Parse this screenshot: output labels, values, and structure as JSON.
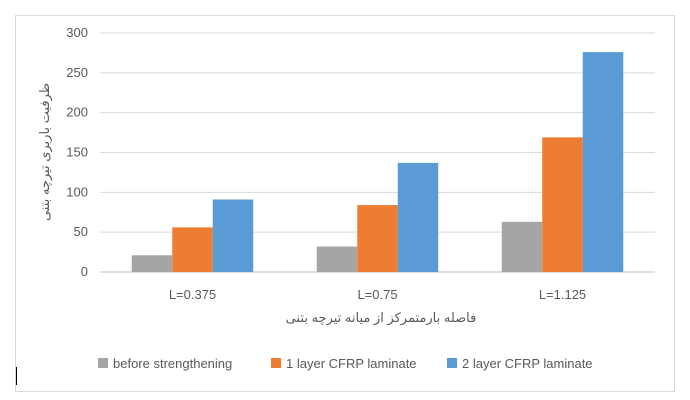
{
  "chart_data": {
    "type": "bar",
    "title": "",
    "xlabel": "فاصله بارمتمرکز از میانه تیرچه بتنی",
    "ylabel": "ظرفیت باربری تیرچه بتنی",
    "categories": [
      "L=0.375",
      "L=0.75",
      "L=1.125"
    ],
    "series": [
      {
        "name": "before strengthening",
        "color": "#a5a5a5",
        "values": [
          21,
          32,
          63
        ]
      },
      {
        "name": "1 layer CFRP laminate",
        "color": "#ed7d31",
        "values": [
          56,
          84,
          169
        ]
      },
      {
        "name": "2 layer CFRP laminate",
        "color": "#5b9bd5",
        "values": [
          91,
          137,
          276
        ]
      }
    ],
    "ylim": [
      0,
      300
    ],
    "yticks": [
      0,
      50,
      100,
      150,
      200,
      250,
      300
    ],
    "grid": true,
    "legend_position": "bottom"
  }
}
